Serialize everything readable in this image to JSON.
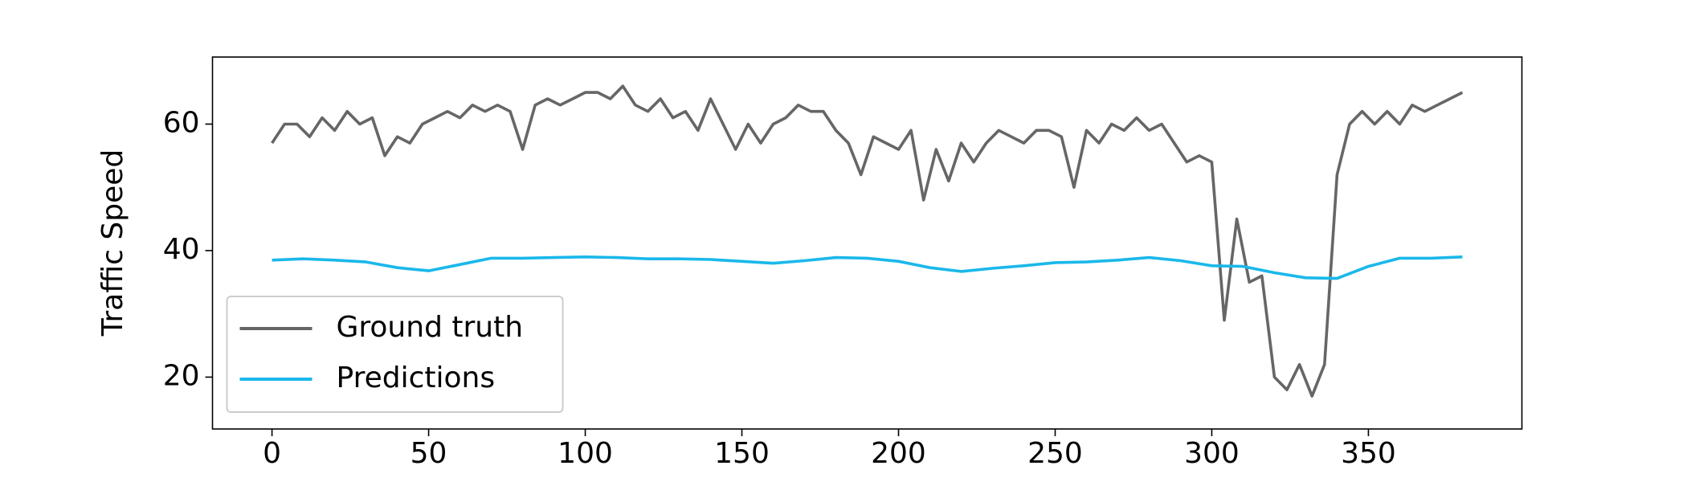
{
  "chart_data": {
    "type": "line",
    "y_label": "Traffic Speed",
    "xlim": [
      -19,
      399
    ],
    "ylim": [
      11.8,
      70.6
    ],
    "xticks": [
      0,
      50,
      100,
      150,
      200,
      250,
      300,
      350
    ],
    "yticks": [
      20,
      40,
      60
    ],
    "legend": "lower left",
    "series": [
      {
        "name": "Ground truth",
        "color": "#666666",
        "x": [
          0,
          4,
          8,
          12,
          16,
          20,
          24,
          28,
          32,
          36,
          40,
          44,
          48,
          52,
          56,
          60,
          64,
          68,
          72,
          76,
          80,
          84,
          88,
          92,
          96,
          100,
          104,
          108,
          112,
          116,
          120,
          124,
          128,
          132,
          136,
          140,
          144,
          148,
          152,
          156,
          160,
          164,
          168,
          172,
          176,
          180,
          184,
          188,
          192,
          196,
          200,
          204,
          208,
          212,
          216,
          220,
          224,
          228,
          232,
          236,
          240,
          244,
          248,
          252,
          256,
          260,
          264,
          268,
          272,
          276,
          280,
          284,
          288,
          292,
          296,
          300,
          304,
          308,
          312,
          316,
          320,
          324,
          328,
          332,
          336,
          340,
          344,
          348,
          352,
          356,
          360,
          364,
          368,
          372,
          376,
          380
        ],
        "values": [
          57,
          60,
          60,
          58,
          61,
          59,
          62,
          60,
          61,
          55,
          58,
          57,
          60,
          61,
          62,
          61,
          63,
          62,
          63,
          62,
          56,
          63,
          64,
          63,
          64,
          65,
          65,
          64,
          66,
          63,
          62,
          64,
          61,
          62,
          59,
          64,
          60,
          56,
          60,
          57,
          60,
          61,
          63,
          62,
          62,
          59,
          57,
          52,
          58,
          57,
          56,
          59,
          48,
          56,
          51,
          57,
          54,
          57,
          59,
          58,
          57,
          59,
          59,
          58,
          50,
          59,
          57,
          60,
          59,
          61,
          59,
          60,
          57,
          54,
          55,
          54,
          29,
          45,
          35,
          36,
          20,
          18,
          22,
          17,
          22,
          52,
          60,
          62,
          60,
          62,
          60,
          63,
          62,
          63,
          64,
          65
        ]
      },
      {
        "name": "Predictions",
        "color": "#1ab8ea",
        "x": [
          0,
          10,
          20,
          30,
          40,
          50,
          60,
          70,
          80,
          90,
          100,
          110,
          120,
          130,
          140,
          150,
          160,
          170,
          180,
          190,
          200,
          210,
          220,
          230,
          240,
          250,
          260,
          270,
          280,
          290,
          300,
          310,
          320,
          330,
          340,
          350,
          360,
          370,
          380
        ],
        "values": [
          38.5,
          38.7,
          38.5,
          38.2,
          37.3,
          36.8,
          37.8,
          38.8,
          38.8,
          38.9,
          39,
          38.9,
          38.7,
          38.7,
          38.6,
          38.3,
          38,
          38.4,
          38.9,
          38.8,
          38.3,
          37.3,
          36.7,
          37.2,
          37.6,
          38.1,
          38.2,
          38.5,
          38.9,
          38.4,
          37.6,
          37.5,
          36.5,
          35.7,
          35.6,
          37.5,
          38.8,
          38.8,
          39
        ]
      }
    ]
  }
}
